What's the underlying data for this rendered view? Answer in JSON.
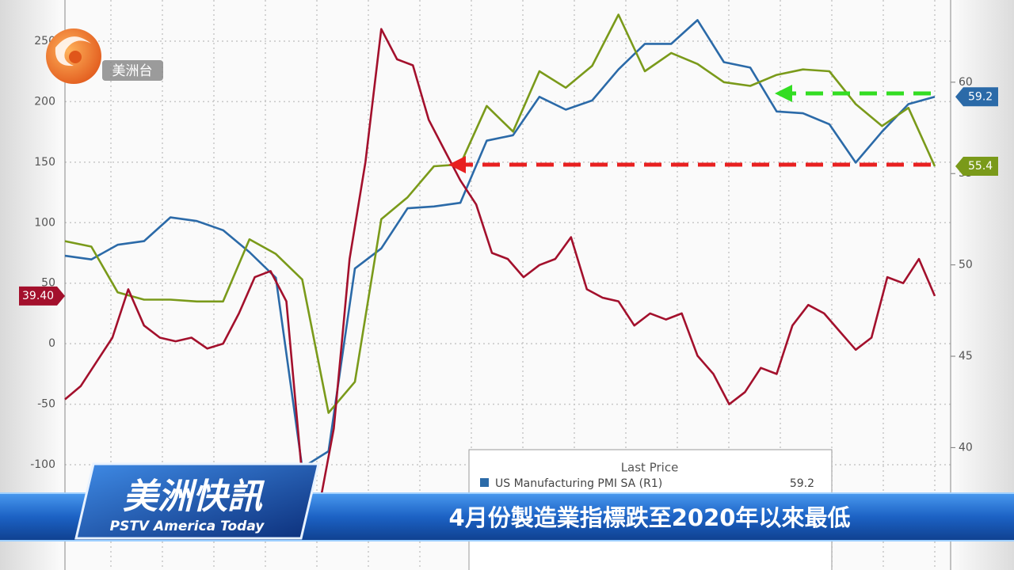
{
  "chart_data": {
    "type": "line",
    "legend_title": "Last Price",
    "ylim": [
      -187,
      284
    ],
    "yticks": [
      -100,
      -50,
      0,
      50,
      100,
      150,
      200,
      250
    ],
    "y2lim": [
      33.3,
      64.5
    ],
    "y2ticks": [
      40,
      45,
      50,
      55,
      60
    ],
    "grid": true,
    "series": [
      {
        "name": "US Manufacturing PMI SA (R1)",
        "color": "#2b6aa8",
        "axis": "y2",
        "values": [
          50.5,
          50.3,
          51.1,
          51.3,
          52.6,
          52.4,
          51.9,
          50.7,
          49.3,
          38.9,
          39.8,
          49.8,
          50.9,
          53.1,
          53.2,
          53.4,
          56.8,
          57.1,
          59.2,
          58.5,
          59.0,
          60.7,
          62.1,
          62.1,
          63.4,
          61.1,
          60.8,
          58.4,
          58.3,
          57.7,
          55.6,
          57.3,
          58.8,
          59.2
        ]
      },
      {
        "color": "#7a9a1a",
        "axis": "y2",
        "values": [
          51.3,
          51.0,
          48.5,
          48.1,
          48.1,
          48.0,
          48.0,
          51.4,
          50.6,
          49.2,
          41.9,
          43.6,
          52.5,
          53.7,
          55.4,
          55.5,
          58.7,
          57.3,
          60.6,
          59.7,
          60.9,
          63.7,
          60.6,
          61.6,
          61.0,
          60.0,
          59.8,
          60.4,
          60.7,
          60.6,
          58.8,
          57.6,
          58.6,
          55.4
        ]
      },
      {
        "color": "#a3102c",
        "values": [
          -46,
          -35,
          -15,
          5,
          45,
          15,
          5,
          2,
          5,
          -4,
          0,
          25,
          55,
          60,
          35,
          -110,
          -140,
          -70,
          70,
          150,
          260,
          235,
          230,
          185,
          160,
          135,
          115,
          75,
          70,
          55,
          65,
          70,
          88,
          45,
          38,
          35,
          15,
          25,
          20,
          25,
          -10,
          -25,
          -50,
          -40,
          -20,
          -25,
          15,
          32,
          25,
          10,
          -5,
          5,
          55,
          50,
          70,
          39.4
        ],
        "value_labels": [
          null,
          null,
          null,
          null,
          null,
          null,
          null,
          null,
          null,
          null,
          null,
          null,
          null,
          null,
          null,
          null,
          null,
          null,
          null,
          null,
          null,
          null,
          null,
          null,
          null,
          null,
          null,
          null,
          null,
          null,
          null,
          null,
          null,
          null,
          null,
          null,
          null,
          null,
          null,
          null,
          null,
          null,
          null,
          null,
          null,
          null,
          null,
          null,
          null,
          null,
          null,
          null,
          null,
          null,
          null,
          "39.40"
        ]
      }
    ]
  },
  "overlay": {
    "channel": "美洲台",
    "program": "美洲快訊",
    "program_en": "PSTV America Today",
    "headline": "4月份製造業指標跌至2020年以來最低"
  }
}
